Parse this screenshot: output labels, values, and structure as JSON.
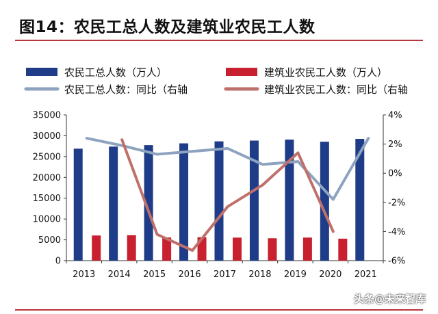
{
  "title": "图14：农民工总人数及建筑业农民工人数",
  "watermark": "头条@未来智库",
  "chart_data": {
    "type": "bar+line",
    "categories": [
      "2013",
      "2014",
      "2015",
      "2016",
      "2017",
      "2018",
      "2019",
      "2020",
      "2021"
    ],
    "left_axis": {
      "min": 0,
      "max": 35000,
      "ticks": [
        0,
        5000,
        10000,
        15000,
        20000,
        25000,
        30000,
        35000
      ]
    },
    "right_axis": {
      "min": -6,
      "max": 4,
      "ticks": [
        -6,
        -4,
        -2,
        0,
        2,
        4
      ],
      "tick_labels": [
        "-6%",
        "-4%",
        "-2%",
        "0%",
        "2%",
        "4%"
      ]
    },
    "legend": [
      "农民工总人数（万人）",
      "建筑业农民工人数（万人）",
      "农民工总人数：同比（右轴",
      "建筑业农民工人数：同比（右轴"
    ],
    "series": [
      {
        "name": "农民工总人数（万人）",
        "kind": "bar",
        "axis": "left",
        "color": "#1f3c88",
        "values": [
          26894,
          27395,
          27747,
          28171,
          28652,
          28836,
          29077,
          28560,
          29251
        ]
      },
      {
        "name": "建筑业农民工人数（万人）",
        "kind": "bar",
        "axis": "left",
        "color": "#c8202f",
        "values": [
          6040,
          6110,
          5570,
          5620,
          5530,
          5380,
          5540,
          5280,
          null
        ]
      },
      {
        "name": "农民工总人数：同比（右轴",
        "kind": "line",
        "axis": "right",
        "color": "#8da3bf",
        "values": [
          2.4,
          1.9,
          1.3,
          1.5,
          1.7,
          0.6,
          0.8,
          -1.8,
          2.4
        ]
      },
      {
        "name": "建筑业农民工人数：同比（右轴",
        "kind": "line",
        "axis": "right",
        "color": "#c0706a",
        "values": [
          null,
          2.3,
          -4.2,
          -5.3,
          -2.3,
          -0.8,
          1.4,
          -4.0,
          null
        ]
      }
    ]
  }
}
